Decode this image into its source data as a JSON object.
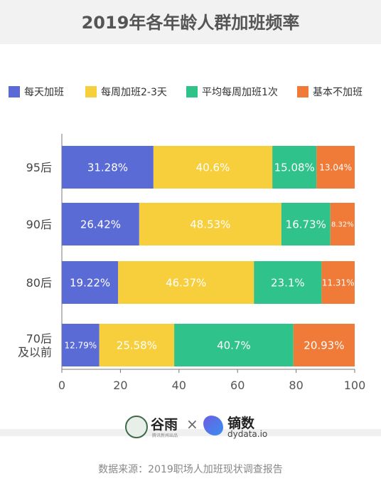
{
  "header": {
    "title": "2019年各年龄人群加班频率"
  },
  "legend": [
    {
      "label": "每天加班",
      "color": "#5b6bd6"
    },
    {
      "label": "每周加班2-3天",
      "color": "#f7cf3c"
    },
    {
      "label": "平均每周加班1次",
      "color": "#2fc28a"
    },
    {
      "label": "基本不加班",
      "color": "#f07a37"
    }
  ],
  "chart_data": {
    "type": "bar",
    "orientation": "horizontal",
    "stacked": true,
    "title": "2019年各年龄人群加班频率",
    "categories": [
      "95后",
      "90后",
      "80后",
      "70后\n及以前"
    ],
    "series": [
      {
        "name": "每天加班",
        "color": "#5b6bd6",
        "values": [
          31.28,
          26.42,
          19.22,
          12.79
        ],
        "labels": [
          "31.28%",
          "26.42%",
          "19.22%",
          "12.79%"
        ]
      },
      {
        "name": "每周加班2-3天",
        "color": "#f7cf3c",
        "values": [
          40.6,
          48.53,
          46.37,
          25.58
        ],
        "labels": [
          "40.6%",
          "48.53%",
          "46.37%",
          "25.58%"
        ]
      },
      {
        "name": "平均每周加班1次",
        "color": "#2fc28a",
        "values": [
          15.08,
          16.73,
          23.1,
          40.7
        ],
        "labels": [
          "15.08%",
          "16.73%",
          "23.1%",
          "40.7%"
        ]
      },
      {
        "name": "基本不加班",
        "color": "#f07a37",
        "values": [
          13.04,
          8.32,
          11.31,
          20.93
        ],
        "labels": [
          "13.04%",
          "8.32%",
          "11.31%",
          "20.93%"
        ]
      }
    ],
    "xlim": [
      0,
      100
    ],
    "xticks": [
      0,
      20,
      40,
      60,
      80,
      100
    ],
    "xlabel": "",
    "ylabel": "",
    "grid": false,
    "legend_position": "top"
  },
  "footer": {
    "brand1": {
      "name": "谷雨",
      "tag": "腾讯新闻出品"
    },
    "times": "×",
    "brand2": {
      "name": "镝数",
      "sub": "dydata.io"
    },
    "source": "数据来源：2019职场人加班现状调查报告"
  }
}
